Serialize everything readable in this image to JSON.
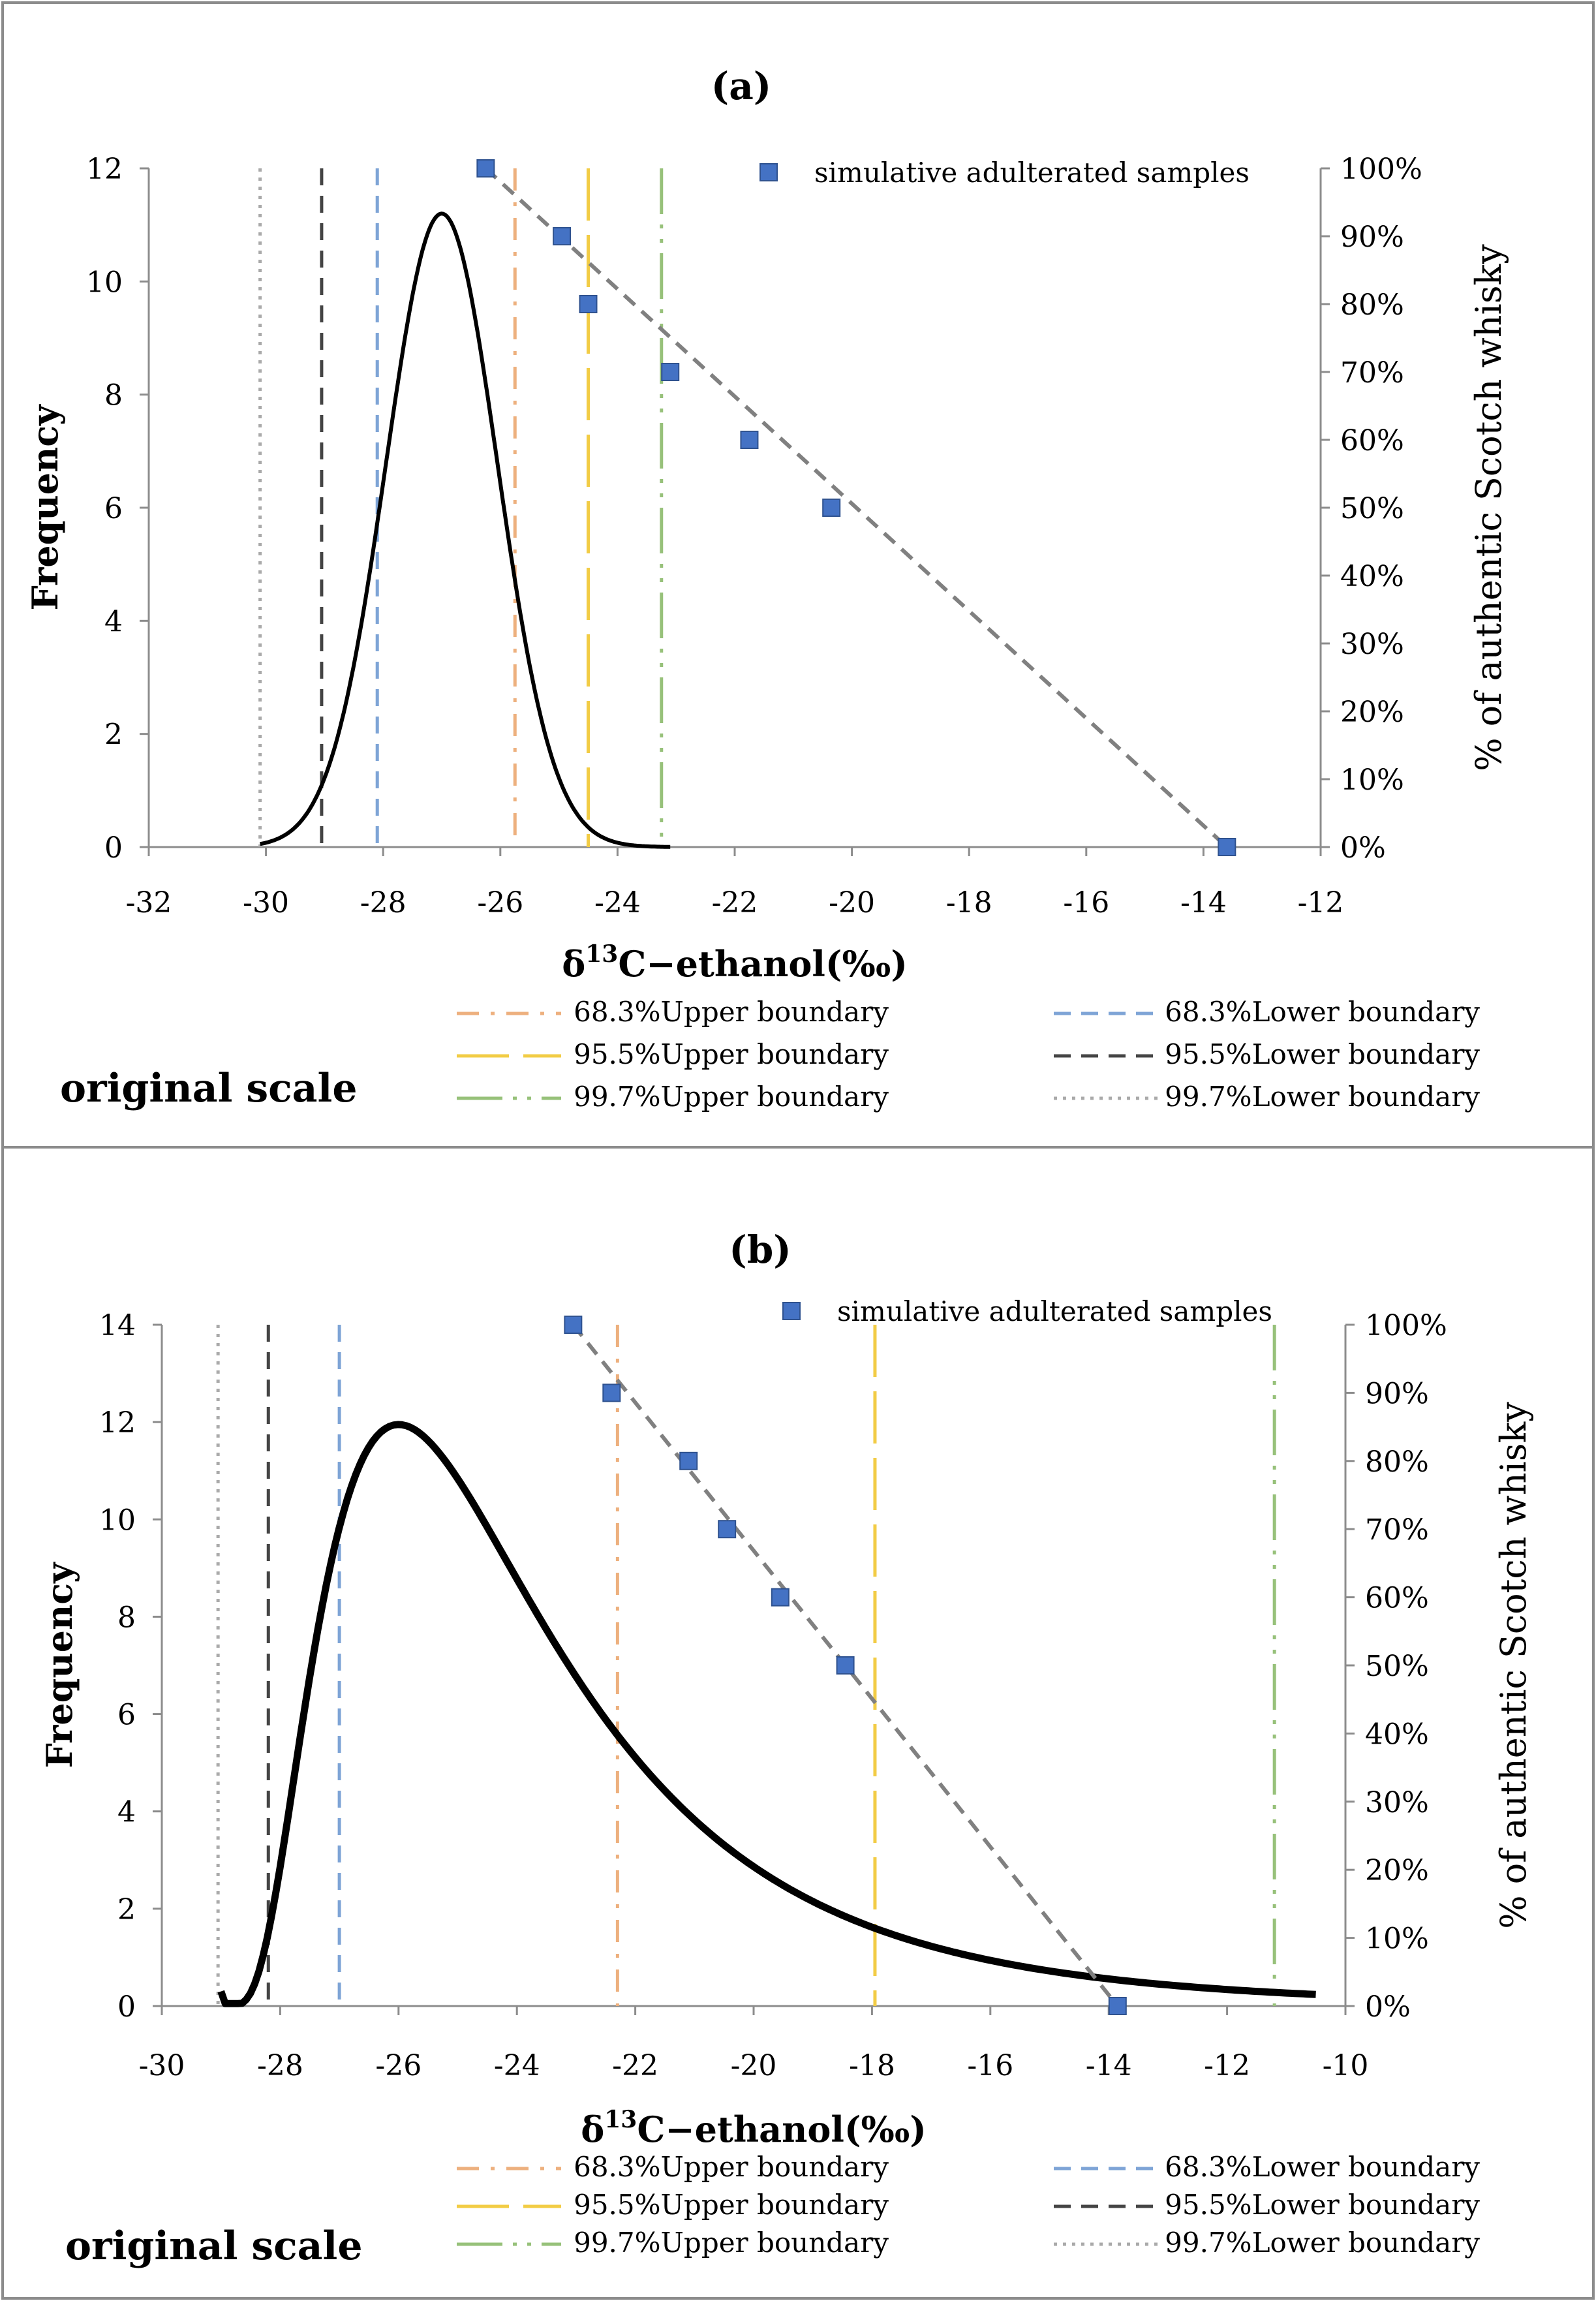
{
  "chart_data": [
    {
      "type": "line",
      "title": "(a)",
      "xlabel_main": "δ",
      "xlabel_sup": "13",
      "xlabel_rest": "C−ethanol(‰)",
      "ylabel": "Frequency",
      "y2label": "% of authentic Scotch whisky",
      "xlim": [
        -32,
        -12
      ],
      "ylim": [
        0,
        12
      ],
      "y2lim": [
        0,
        100
      ],
      "xticks": [
        "-32",
        "-30",
        "-28",
        "-26",
        "-24",
        "-22",
        "-20",
        "-18",
        "-16",
        "-14",
        "-12"
      ],
      "yticks": [
        "0",
        "2",
        "4",
        "6",
        "8",
        "10",
        "12"
      ],
      "y2ticks": [
        "0%",
        "10%",
        "20%",
        "30%",
        "40%",
        "50%",
        "60%",
        "70%",
        "80%",
        "90%",
        "100%"
      ],
      "distribution": {
        "kind": "normal",
        "mean": -27.0,
        "sd": 0.95,
        "peak": 11.2,
        "x_start": -30.1,
        "x_end": -23.1
      },
      "samples": {
        "name": "simulative adulterated samples",
        "x": [
          -26.25,
          -24.95,
          -24.5,
          -23.1,
          -21.75,
          -20.35,
          -13.6
        ],
        "y_pct": [
          100,
          90,
          80,
          70,
          60,
          50,
          0
        ]
      },
      "trend_line": {
        "x": [
          -26.25,
          -13.6
        ],
        "y_pct": [
          100,
          0
        ]
      },
      "boundaries": [
        {
          "name": "68.3%Upper boundary",
          "x": -25.75,
          "color": "#EDB07E",
          "style": "dashdot"
        },
        {
          "name": "95.5%Upper boundary",
          "x": -24.5,
          "color": "#F2CC45",
          "style": "longdash"
        },
        {
          "name": "99.7%Upper boundary",
          "x": -23.25,
          "color": "#97C17A",
          "style": "longdashdotdot"
        },
        {
          "name": "68.3%Lower boundary",
          "x": -28.1,
          "color": "#7EA4D6",
          "style": "dash"
        },
        {
          "name": "95.5%Lower boundary",
          "x": -29.05,
          "color": "#444444",
          "style": "dash"
        },
        {
          "name": "99.7%Lower boundary",
          "x": -30.1,
          "color": "#AAAAAA",
          "style": "dot"
        }
      ],
      "scale_label": "original scale"
    },
    {
      "type": "line",
      "title": "(b)",
      "xlabel_main": "δ",
      "xlabel_sup": "13",
      "xlabel_rest": "C−ethanol(‰)",
      "ylabel": "Frequency",
      "y2label": "% of authentic Scotch whisky",
      "xlim": [
        -30,
        -10
      ],
      "ylim": [
        0,
        14
      ],
      "y2lim": [
        0,
        100
      ],
      "xticks": [
        "-30",
        "-28",
        "-26",
        "-24",
        "-22",
        "-20",
        "-18",
        "-16",
        "-14",
        "-12",
        "-10"
      ],
      "yticks": [
        "0",
        "2",
        "4",
        "6",
        "8",
        "10",
        "12",
        "14"
      ],
      "y2ticks": [
        "0%",
        "10%",
        "20%",
        "30%",
        "40%",
        "50%",
        "60%",
        "70%",
        "80%",
        "90%",
        "100%"
      ],
      "distribution": {
        "kind": "lognormal",
        "x0": -29.0,
        "mode": -26.0,
        "peak": 11.95,
        "x_start": -29.0,
        "x_end": -10.5
      },
      "samples": {
        "name": "simulative adulterated samples",
        "x": [
          -23.05,
          -22.4,
          -21.1,
          -20.45,
          -19.55,
          -18.45,
          -13.85
        ],
        "y_pct": [
          100,
          90,
          80,
          70,
          60,
          50,
          0
        ]
      },
      "trend_line": {
        "x": [
          -23.05,
          -13.85
        ],
        "y_pct": [
          100,
          0
        ]
      },
      "boundaries": [
        {
          "name": "68.3%Upper boundary",
          "x": -22.3,
          "color": "#EDB07E",
          "style": "dashdot"
        },
        {
          "name": "95.5%Upper boundary",
          "x": -17.95,
          "color": "#F2CC45",
          "style": "longdash"
        },
        {
          "name": "99.7%Upper boundary",
          "x": -11.2,
          "color": "#97C17A",
          "style": "longdashdotdot"
        },
        {
          "name": "68.3%Lower boundary",
          "x": -27.0,
          "color": "#7EA4D6",
          "style": "dash"
        },
        {
          "name": "95.5%Lower boundary",
          "x": -28.2,
          "color": "#444444",
          "style": "dash"
        },
        {
          "name": "99.7%Lower boundary",
          "x": -29.05,
          "color": "#AAAAAA",
          "style": "dot"
        }
      ],
      "scale_label": "original scale"
    }
  ],
  "colors": {
    "marker": "#4472C4",
    "marker_edge": "#2F528F",
    "trend": "#808080",
    "curve": "#000000",
    "frame": "#8c8c8c"
  }
}
